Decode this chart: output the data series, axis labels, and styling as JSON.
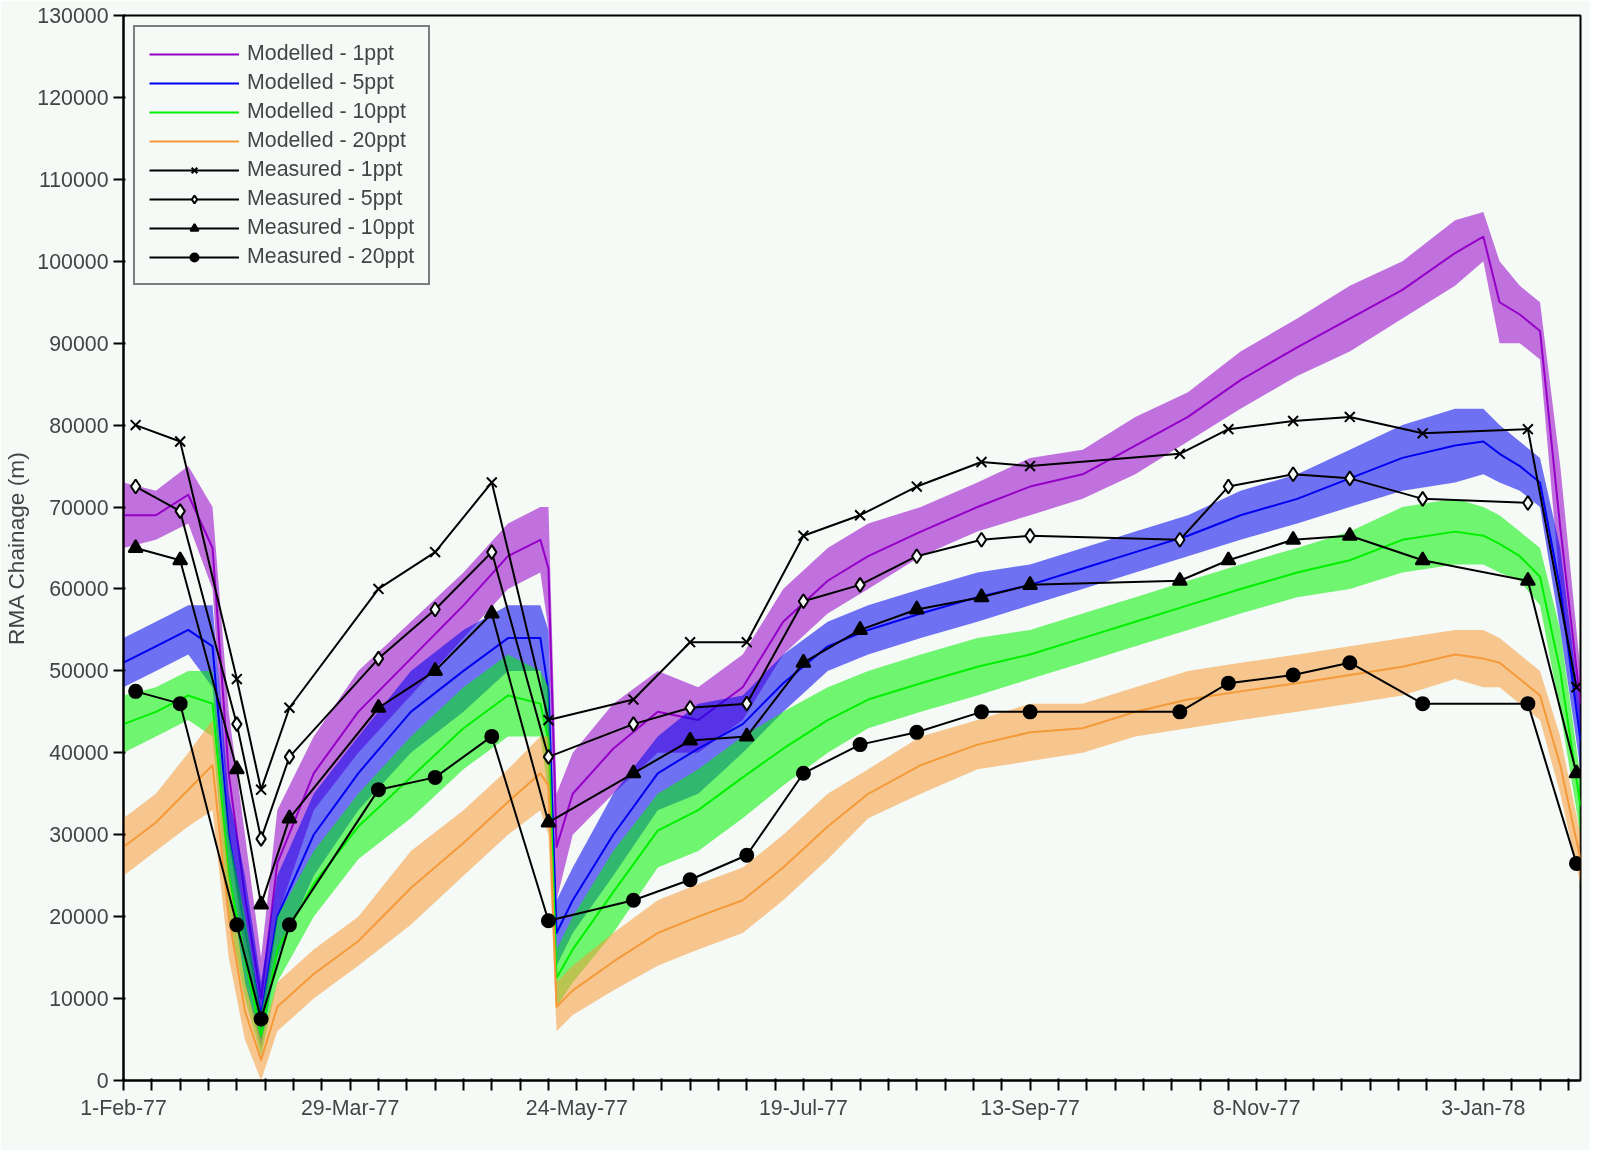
{
  "chart_data": {
    "type": "line",
    "ylabel": "RMA Chainage (m)",
    "xlim": [
      "1977-02-01",
      "1978-01-27"
    ],
    "ylim": [
      0,
      130000
    ],
    "yticks": [
      0,
      10000,
      20000,
      30000,
      40000,
      50000,
      60000,
      70000,
      80000,
      90000,
      100000,
      110000,
      120000,
      130000
    ],
    "xticks": [
      {
        "value": "1977-02-01",
        "label": "1-Feb-77"
      },
      {
        "value": "1977-02-08",
        "label": null
      },
      {
        "value": "1977-02-15",
        "label": null
      },
      {
        "value": "1977-02-22",
        "label": null
      },
      {
        "value": "1977-03-01",
        "label": null
      },
      {
        "value": "1977-03-08",
        "label": null
      },
      {
        "value": "1977-03-15",
        "label": null
      },
      {
        "value": "1977-03-22",
        "label": null
      },
      {
        "value": "1977-03-29",
        "label": "29-Mar-77"
      },
      {
        "value": "1977-04-05",
        "label": null
      },
      {
        "value": "1977-04-12",
        "label": null
      },
      {
        "value": "1977-04-19",
        "label": null
      },
      {
        "value": "1977-04-26",
        "label": null
      },
      {
        "value": "1977-05-03",
        "label": null
      },
      {
        "value": "1977-05-10",
        "label": null
      },
      {
        "value": "1977-05-17",
        "label": null
      },
      {
        "value": "1977-05-24",
        "label": "24-May-77"
      },
      {
        "value": "1977-05-31",
        "label": null
      },
      {
        "value": "1977-06-07",
        "label": null
      },
      {
        "value": "1977-06-14",
        "label": null
      },
      {
        "value": "1977-06-21",
        "label": null
      },
      {
        "value": "1977-06-28",
        "label": null
      },
      {
        "value": "1977-07-05",
        "label": null
      },
      {
        "value": "1977-07-12",
        "label": null
      },
      {
        "value": "1977-07-19",
        "label": "19-Jul-77"
      },
      {
        "value": "1977-07-26",
        "label": null
      },
      {
        "value": "1977-08-02",
        "label": null
      },
      {
        "value": "1977-08-09",
        "label": null
      },
      {
        "value": "1977-08-16",
        "label": null
      },
      {
        "value": "1977-08-23",
        "label": null
      },
      {
        "value": "1977-08-30",
        "label": null
      },
      {
        "value": "1977-09-06",
        "label": null
      },
      {
        "value": "1977-09-13",
        "label": "13-Sep-77"
      },
      {
        "value": "1977-09-20",
        "label": null
      },
      {
        "value": "1977-09-27",
        "label": null
      },
      {
        "value": "1977-10-04",
        "label": null
      },
      {
        "value": "1977-10-11",
        "label": null
      },
      {
        "value": "1977-10-18",
        "label": null
      },
      {
        "value": "1977-10-25",
        "label": null
      },
      {
        "value": "1977-11-01",
        "label": null
      },
      {
        "value": "1977-11-08",
        "label": "8-Nov-77"
      },
      {
        "value": "1977-11-15",
        "label": null
      },
      {
        "value": "1977-11-22",
        "label": null
      },
      {
        "value": "1977-11-29",
        "label": null
      },
      {
        "value": "1977-12-06",
        "label": null
      },
      {
        "value": "1977-12-13",
        "label": null
      },
      {
        "value": "1977-12-20",
        "label": null
      },
      {
        "value": "1977-12-27",
        "label": null
      },
      {
        "value": "1978-01-03",
        "label": "3-Jan-78"
      },
      {
        "value": "1978-01-10",
        "label": null
      },
      {
        "value": "1978-01-17",
        "label": null
      },
      {
        "value": "1978-01-24",
        "label": null
      }
    ],
    "grid": false,
    "legend": "top left",
    "x": [
      "1977-02-04",
      "1977-02-15",
      "1977-03-01",
      "1977-03-07",
      "1977-03-14",
      "1977-04-05",
      "1977-04-19",
      "1977-05-03",
      "1977-05-17",
      "1977-06-07",
      "1977-06-21",
      "1977-07-05",
      "1977-07-19",
      "1977-08-02",
      "1977-08-16",
      "1977-09-01",
      "1977-09-13",
      "1977-10-20",
      "1977-11-01",
      "1977-11-17",
      "1977-12-01",
      "1977-12-19",
      "1978-01-14",
      "1978-01-26"
    ],
    "series": [
      {
        "name": "Modelled - 1ppt",
        "color": "#9400c8",
        "marker": "none",
        "x": [
          "1977-02-01",
          "1977-02-09",
          "1977-02-17",
          "1977-02-23",
          "1977-02-27",
          "1977-03-03",
          "1977-03-07",
          "1977-03-11",
          "1977-03-20",
          "1977-03-31",
          "1977-04-13",
          "1977-04-26",
          "1977-05-07",
          "1977-05-15",
          "1977-05-17",
          "1977-05-19",
          "1977-05-23",
          "1977-06-02",
          "1977-06-13",
          "1977-06-23",
          "1977-07-04",
          "1977-07-14",
          "1977-07-25",
          "1977-08-04",
          "1977-08-17",
          "1977-08-31",
          "1977-09-13",
          "1977-09-26",
          "1977-10-09",
          "1977-10-22",
          "1977-11-04",
          "1977-11-18",
          "1977-12-01",
          "1977-12-14",
          "1977-12-27",
          "1978-01-03",
          "1978-01-07",
          "1978-01-12",
          "1978-01-17",
          "1978-01-22",
          "1978-01-27"
        ],
        "values": [
          69000,
          69000,
          71500,
          65000,
          37500,
          22500,
          10000,
          26500,
          37500,
          45000,
          51500,
          58000,
          64000,
          66000,
          62500,
          28500,
          35000,
          40500,
          45000,
          44000,
          48000,
          56000,
          61000,
          64000,
          67000,
          70000,
          72500,
          74000,
          77500,
          81000,
          85500,
          89500,
          93000,
          96500,
          101000,
          103000,
          95000,
          93500,
          91500,
          67500,
          46000
        ],
        "lower": [
          65000,
          66000,
          68000,
          60000,
          30000,
          15000,
          5000,
          20000,
          33000,
          40000,
          47000,
          54000,
          60000,
          62000,
          55000,
          22000,
          30000,
          35000,
          40000,
          40000,
          44000,
          52000,
          57000,
          60000,
          64000,
          67000,
          69000,
          71000,
          74000,
          78000,
          82000,
          86000,
          89000,
          93000,
          97000,
          100000,
          90000,
          90000,
          88000,
          60000,
          42000
        ],
        "upper": [
          73000,
          72000,
          75000,
          70000,
          45000,
          30000,
          15000,
          33000,
          42000,
          50000,
          56000,
          62000,
          68000,
          70000,
          70000,
          35000,
          40000,
          46000,
          50000,
          48000,
          52000,
          60000,
          65000,
          68000,
          70000,
          73000,
          76000,
          77000,
          81000,
          84000,
          89000,
          93000,
          97000,
          100000,
          105000,
          106000,
          100000,
          97000,
          95000,
          75000,
          50000
        ]
      },
      {
        "name": "Modelled - 5ppt",
        "color": "#0000f0",
        "marker": "none",
        "x": [
          "1977-02-01",
          "1977-02-09",
          "1977-02-17",
          "1977-02-23",
          "1977-02-27",
          "1977-03-03",
          "1977-03-07",
          "1977-03-11",
          "1977-03-20",
          "1977-03-31",
          "1977-04-13",
          "1977-04-26",
          "1977-05-07",
          "1977-05-15",
          "1977-05-17",
          "1977-05-19",
          "1977-05-23",
          "1977-06-02",
          "1977-06-13",
          "1977-06-23",
          "1977-07-04",
          "1977-07-14",
          "1977-07-25",
          "1977-08-04",
          "1977-08-17",
          "1977-08-31",
          "1977-09-13",
          "1977-09-26",
          "1977-10-09",
          "1977-10-22",
          "1977-11-04",
          "1977-11-18",
          "1977-12-01",
          "1977-12-14",
          "1977-12-27",
          "1978-01-03",
          "1978-01-07",
          "1978-01-12",
          "1978-01-17",
          "1978-01-22",
          "1978-01-27"
        ],
        "values": [
          51000,
          53000,
          55000,
          53000,
          30000,
          18500,
          8000,
          20000,
          30000,
          37500,
          45000,
          50000,
          54000,
          54000,
          47500,
          18000,
          22000,
          30000,
          37500,
          40500,
          43500,
          48500,
          53000,
          55000,
          57000,
          59000,
          60500,
          62500,
          64500,
          66500,
          69000,
          71000,
          73500,
          76000,
          77500,
          78000,
          76500,
          75000,
          73000,
          60000,
          41500
        ],
        "lower": [
          48000,
          50000,
          52000,
          48000,
          25000,
          12000,
          4000,
          15000,
          25000,
          33000,
          40000,
          45000,
          50000,
          50000,
          40000,
          14000,
          18000,
          25000,
          33000,
          35000,
          40000,
          45000,
          50000,
          52000,
          54000,
          56000,
          58000,
          60000,
          62000,
          64000,
          66000,
          68000,
          70000,
          72000,
          73000,
          74000,
          73000,
          72000,
          70000,
          55000,
          38000
        ],
        "upper": [
          54000,
          56000,
          58000,
          58000,
          35000,
          25000,
          12000,
          25000,
          35000,
          42000,
          50000,
          55000,
          58000,
          58000,
          55000,
          22000,
          26000,
          35000,
          42000,
          46000,
          47000,
          52000,
          56000,
          58000,
          60000,
          62000,
          63000,
          65000,
          67000,
          69000,
          72000,
          74000,
          77000,
          80000,
          82000,
          82000,
          80000,
          78000,
          76000,
          65000,
          45000
        ]
      },
      {
        "name": "Modelled - 10ppt",
        "color": "#00f000",
        "marker": "none",
        "x": [
          "1977-02-01",
          "1977-02-09",
          "1977-02-17",
          "1977-02-23",
          "1977-02-27",
          "1977-03-03",
          "1977-03-07",
          "1977-03-11",
          "1977-03-20",
          "1977-03-31",
          "1977-04-13",
          "1977-04-26",
          "1977-05-07",
          "1977-05-15",
          "1977-05-17",
          "1977-05-19",
          "1977-05-23",
          "1977-06-02",
          "1977-06-13",
          "1977-06-23",
          "1977-07-04",
          "1977-07-14",
          "1977-07-25",
          "1977-08-04",
          "1977-08-17",
          "1977-08-31",
          "1977-09-13",
          "1977-09-26",
          "1977-10-09",
          "1977-10-22",
          "1977-11-04",
          "1977-11-18",
          "1977-12-01",
          "1977-12-14",
          "1977-12-27",
          "1978-01-03",
          "1978-01-07",
          "1978-01-12",
          "1978-01-17",
          "1978-01-22",
          "1978-01-27"
        ],
        "values": [
          43500,
          45000,
          47000,
          46000,
          25000,
          15000,
          5500,
          16000,
          24000,
          31000,
          37000,
          43000,
          47000,
          46000,
          41500,
          12500,
          16000,
          23000,
          30500,
          33000,
          37000,
          40500,
          44000,
          46500,
          48500,
          50500,
          52000,
          54000,
          56000,
          58000,
          60000,
          62000,
          63500,
          66000,
          67000,
          66500,
          65500,
          64000,
          61500,
          50000,
          33500
        ],
        "lower": [
          40000,
          42000,
          44000,
          42000,
          20000,
          10000,
          3000,
          12000,
          20000,
          27000,
          32000,
          38000,
          42000,
          42000,
          35000,
          9000,
          12000,
          18000,
          26000,
          28000,
          32000,
          36000,
          40000,
          43000,
          45000,
          47000,
          49000,
          51000,
          53000,
          55000,
          57000,
          59000,
          60000,
          62000,
          63000,
          63000,
          62000,
          61000,
          58000,
          45000,
          30000
        ],
        "upper": [
          47000,
          48000,
          50000,
          50000,
          30000,
          20000,
          8000,
          20000,
          28000,
          35000,
          42000,
          48000,
          52000,
          50000,
          48000,
          16000,
          20000,
          28000,
          35000,
          38000,
          42000,
          45000,
          48000,
          50000,
          52000,
          54000,
          55000,
          57000,
          59000,
          61000,
          63000,
          65000,
          67000,
          70000,
          71000,
          70000,
          69000,
          67000,
          65000,
          55000,
          37000
        ]
      },
      {
        "name": "Modelled - 20ppt",
        "color": "#f59a38",
        "marker": "none",
        "x": [
          "1977-02-01",
          "1977-02-09",
          "1977-02-17",
          "1977-02-23",
          "1977-02-27",
          "1977-03-03",
          "1977-03-07",
          "1977-03-11",
          "1977-03-20",
          "1977-03-31",
          "1977-04-13",
          "1977-04-26",
          "1977-05-07",
          "1977-05-15",
          "1977-05-17",
          "1977-05-19",
          "1977-05-23",
          "1977-06-02",
          "1977-06-13",
          "1977-06-23",
          "1977-07-04",
          "1977-07-14",
          "1977-07-25",
          "1977-08-04",
          "1977-08-17",
          "1977-08-31",
          "1977-09-13",
          "1977-09-26",
          "1977-10-09",
          "1977-10-22",
          "1977-11-04",
          "1977-11-18",
          "1977-12-01",
          "1977-12-14",
          "1977-12-27",
          "1978-01-03",
          "1978-01-07",
          "1978-01-12",
          "1978-01-17",
          "1978-01-22",
          "1978-01-27"
        ],
        "values": [
          28500,
          31500,
          35500,
          38500,
          20000,
          8500,
          2500,
          9000,
          13000,
          17000,
          23500,
          29000,
          34000,
          37500,
          36000,
          9000,
          11000,
          14500,
          18000,
          20000,
          22000,
          26000,
          31000,
          35000,
          38500,
          41000,
          42500,
          43000,
          45000,
          46500,
          47500,
          48500,
          49500,
          50500,
          52000,
          51500,
          51000,
          49000,
          47000,
          38500,
          27000
        ],
        "lower": [
          25000,
          28000,
          31000,
          33000,
          15000,
          5000,
          0,
          6000,
          10000,
          14000,
          19000,
          25000,
          30000,
          33000,
          30000,
          6000,
          8000,
          11000,
          14000,
          16000,
          18000,
          22000,
          27000,
          32000,
          35000,
          38000,
          39000,
          40000,
          42000,
          43000,
          44000,
          45000,
          46000,
          47000,
          49000,
          48000,
          48000,
          46000,
          44000,
          35000,
          24000
        ],
        "upper": [
          32000,
          35000,
          40000,
          44000,
          25000,
          12000,
          5000,
          12000,
          16000,
          20000,
          28000,
          33000,
          38000,
          42000,
          42000,
          12000,
          14000,
          18000,
          22000,
          24000,
          26000,
          30000,
          35000,
          38000,
          42000,
          44000,
          46000,
          46000,
          48000,
          50000,
          51000,
          52000,
          53000,
          54000,
          55000,
          55000,
          54000,
          52000,
          50000,
          42000,
          30000
        ]
      },
      {
        "name": "Measured - 1ppt",
        "color": "#000000",
        "marker": "cross",
        "values": [
          80000,
          78000,
          49000,
          35500,
          45500,
          60000,
          64500,
          73000,
          44000,
          46500,
          53500,
          53500,
          66500,
          69000,
          72500,
          75500,
          75000,
          76500,
          79500,
          80500,
          81000,
          79000,
          79500,
          48000
        ]
      },
      {
        "name": "Measured - 5ppt",
        "color": "#000000",
        "marker": "diamond",
        "values": [
          72500,
          69500,
          43500,
          29500,
          39500,
          51500,
          57500,
          64500,
          39500,
          43500,
          45500,
          46000,
          58500,
          60500,
          64000,
          66000,
          66500,
          66000,
          72500,
          74000,
          73500,
          71000,
          70500,
          null
        ]
      },
      {
        "name": "Measured - 10ppt",
        "color": "#000000",
        "marker": "triangle",
        "values": [
          65000,
          63500,
          38000,
          21500,
          32000,
          45500,
          50000,
          57000,
          31500,
          37500,
          41500,
          42000,
          51000,
          55000,
          57500,
          59000,
          60500,
          61000,
          63500,
          66000,
          66500,
          63500,
          61000,
          37500
        ]
      },
      {
        "name": "Measured - 20ppt",
        "color": "#000000",
        "marker": "circle",
        "values": [
          47500,
          46000,
          19000,
          7500,
          19000,
          35500,
          37000,
          42000,
          19500,
          22000,
          24500,
          27500,
          37500,
          41000,
          42500,
          45000,
          45000,
          45000,
          48500,
          49500,
          51000,
          46000,
          46000,
          26500
        ]
      }
    ]
  }
}
